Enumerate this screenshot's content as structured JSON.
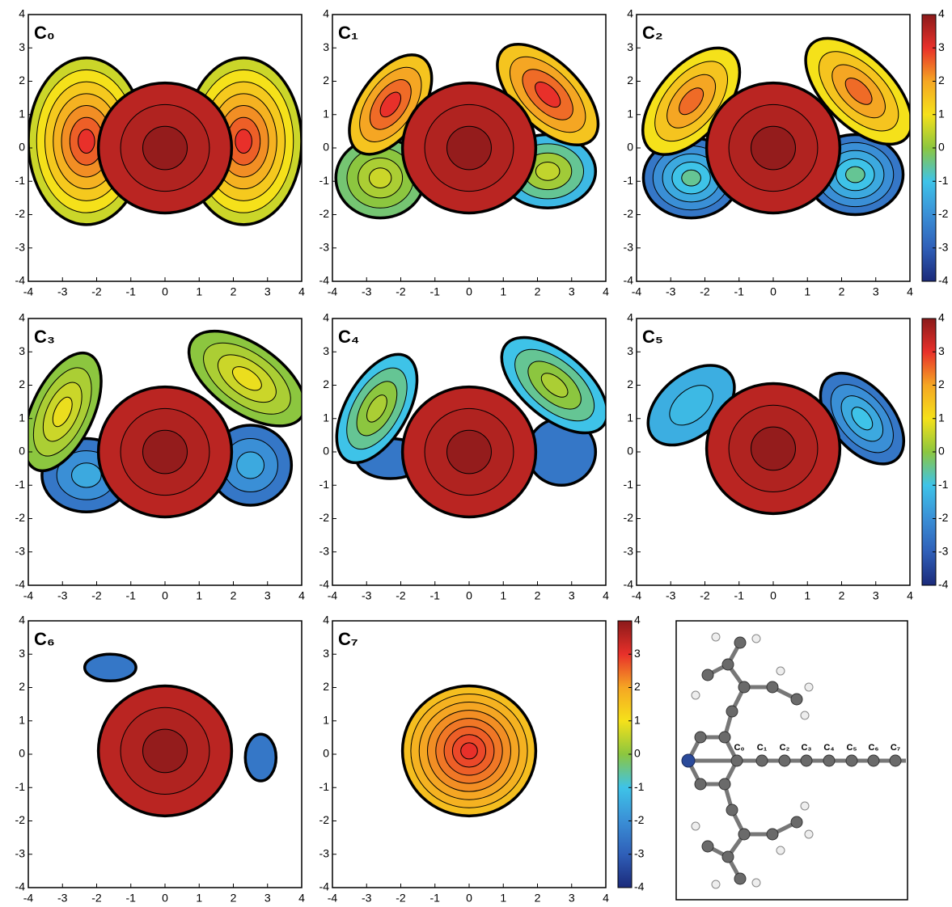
{
  "chart_data": [
    {
      "type": "contour",
      "title": "C₀",
      "xlim": [
        -4,
        4
      ],
      "ylim": [
        -4,
        4
      ],
      "xticks": [
        -4,
        -3,
        -2,
        -1,
        0,
        1,
        2,
        3,
        4
      ],
      "yticks": [
        -4,
        -3,
        -2,
        -1,
        0,
        1,
        2,
        3,
        4
      ],
      "clim": [
        -4,
        4
      ],
      "colormap": [
        "#1b2a7a",
        "#2f5fb8",
        "#3a8fd6",
        "#3ec3e8",
        "#8cc63f",
        "#f5e11a",
        "#f5a623",
        "#e8302a",
        "#8b1a1a"
      ],
      "regions": [
        {
          "cx": -2.3,
          "cy": 0.2,
          "rx": 1.7,
          "ry": 2.5,
          "angle": 0,
          "levels": [
            0.6,
            1.0,
            1.4,
            1.8,
            2.2,
            2.6,
            3.0
          ]
        },
        {
          "cx": 2.3,
          "cy": 0.2,
          "rx": 1.7,
          "ry": 2.5,
          "angle": 0,
          "levels": [
            0.6,
            1.0,
            1.4,
            1.8,
            2.2,
            2.6,
            3.0
          ]
        },
        {
          "cx": 0,
          "cy": 0,
          "rx": 1.95,
          "ry": 1.95,
          "angle": 0,
          "levels": [
            3.5,
            3.6,
            3.9
          ]
        }
      ]
    },
    {
      "type": "contour",
      "title": "C₁",
      "xlim": [
        -4,
        4
      ],
      "ylim": [
        -4,
        4
      ],
      "xticks": [
        -4,
        -3,
        -2,
        -1,
        0,
        1,
        2,
        3,
        4
      ],
      "yticks": [
        -4,
        -3,
        -2,
        -1,
        0,
        1,
        2,
        3,
        4
      ],
      "clim": [
        -4,
        4
      ],
      "colormap": [
        "#1b2a7a",
        "#2f5fb8",
        "#3a8fd6",
        "#3ec3e8",
        "#8cc63f",
        "#f5e11a",
        "#f5a623",
        "#e8302a",
        "#8b1a1a"
      ],
      "regions": [
        {
          "cx": -2.6,
          "cy": -0.9,
          "rx": 1.3,
          "ry": 1.2,
          "angle": 0,
          "levels": [
            -0.3,
            0,
            0.3,
            0.6
          ]
        },
        {
          "cx": 2.3,
          "cy": -0.7,
          "rx": 1.4,
          "ry": 1.1,
          "angle": 0,
          "levels": [
            -1.2,
            -0.5,
            0.2,
            0.5
          ]
        },
        {
          "cx": -2.3,
          "cy": 1.3,
          "rx": 0.9,
          "ry": 1.7,
          "angle": -35,
          "levels": [
            1.5,
            2,
            2.5,
            3
          ]
        },
        {
          "cx": 2.3,
          "cy": 1.6,
          "rx": 0.95,
          "ry": 1.9,
          "angle": 45,
          "levels": [
            1.5,
            2,
            2.5,
            3
          ]
        },
        {
          "cx": 0,
          "cy": 0,
          "rx": 1.95,
          "ry": 1.95,
          "angle": 0,
          "levels": [
            3.5,
            3.6,
            3.9
          ]
        }
      ]
    },
    {
      "type": "contour",
      "title": "C₂",
      "xlim": [
        -4,
        4
      ],
      "ylim": [
        -4,
        4
      ],
      "xticks": [
        -4,
        -3,
        -2,
        -1,
        0,
        1,
        2,
        3,
        4
      ],
      "yticks": [
        -4,
        -3,
        -2,
        -1,
        0,
        1,
        2,
        3,
        4
      ],
      "clim": [
        -4,
        4
      ],
      "cticks": [
        -4,
        -3,
        -2,
        -1,
        0,
        1,
        2,
        3,
        4
      ],
      "colormap": [
        "#1b2a7a",
        "#2f5fb8",
        "#3a8fd6",
        "#3ec3e8",
        "#8cc63f",
        "#f5e11a",
        "#f5a623",
        "#e8302a",
        "#8b1a1a"
      ],
      "regions": [
        {
          "cx": -2.4,
          "cy": -0.9,
          "rx": 1.4,
          "ry": 1.2,
          "angle": 0,
          "levels": [
            -2.5,
            -2,
            -1.5,
            -1,
            -0.5
          ]
        },
        {
          "cx": 2.4,
          "cy": -0.8,
          "rx": 1.4,
          "ry": 1.2,
          "angle": 0,
          "levels": [
            -2.5,
            -2,
            -1.5,
            -1,
            -0.5
          ]
        },
        {
          "cx": -2.4,
          "cy": 1.4,
          "rx": 1.0,
          "ry": 1.9,
          "angle": -40,
          "levels": [
            1,
            1.5,
            2,
            2.5
          ]
        },
        {
          "cx": 2.5,
          "cy": 1.7,
          "rx": 1.0,
          "ry": 2.0,
          "angle": 45,
          "levels": [
            1,
            1.5,
            2,
            2.5
          ]
        },
        {
          "cx": 0,
          "cy": 0,
          "rx": 1.95,
          "ry": 1.95,
          "angle": 0,
          "levels": [
            3.5,
            3.6,
            3.9
          ]
        }
      ]
    },
    {
      "type": "contour",
      "title": "C₃",
      "xlim": [
        -4,
        4
      ],
      "ylim": [
        -4,
        4
      ],
      "xticks": [
        -4,
        -3,
        -2,
        -1,
        0,
        1,
        2,
        3,
        4
      ],
      "yticks": [
        -4,
        -3,
        -2,
        -1,
        0,
        1,
        2,
        3,
        4
      ],
      "clim": [
        -4,
        4
      ],
      "colormap": [
        "#1b2a7a",
        "#2f5fb8",
        "#3a8fd6",
        "#3ec3e8",
        "#8cc63f",
        "#f5e11a",
        "#f5a623",
        "#e8302a",
        "#8b1a1a"
      ],
      "regions": [
        {
          "cx": -2.3,
          "cy": -0.7,
          "rx": 1.3,
          "ry": 1.1,
          "angle": 0,
          "levels": [
            -2.5,
            -2,
            -1.5
          ]
        },
        {
          "cx": 2.5,
          "cy": -0.4,
          "rx": 1.2,
          "ry": 1.2,
          "angle": 0,
          "levels": [
            -2.5,
            -2,
            -1.5
          ]
        },
        {
          "cx": -3.0,
          "cy": 1.2,
          "rx": 0.9,
          "ry": 1.9,
          "angle": -25,
          "levels": [
            0,
            0.3,
            0.6,
            0.9
          ]
        },
        {
          "cx": 2.4,
          "cy": 2.2,
          "rx": 1.0,
          "ry": 2.0,
          "angle": 55,
          "levels": [
            0,
            0.3,
            0.6,
            0.9
          ]
        },
        {
          "cx": 0,
          "cy": 0,
          "rx": 1.95,
          "ry": 1.95,
          "angle": 0,
          "levels": [
            3.5,
            3.6,
            3.9
          ]
        }
      ]
    },
    {
      "type": "contour",
      "title": "C₄",
      "xlim": [
        -4,
        4
      ],
      "ylim": [
        -4,
        4
      ],
      "xticks": [
        -4,
        -3,
        -2,
        -1,
        0,
        1,
        2,
        3,
        4
      ],
      "yticks": [
        -4,
        -3,
        -2,
        -1,
        0,
        1,
        2,
        3,
        4
      ],
      "clim": [
        -4,
        4
      ],
      "colormap": [
        "#1b2a7a",
        "#2f5fb8",
        "#3a8fd6",
        "#3ec3e8",
        "#8cc63f",
        "#f5e11a",
        "#f5a623",
        "#e8302a",
        "#8b1a1a"
      ],
      "regions": [
        {
          "cx": -2.3,
          "cy": -0.2,
          "rx": 1.0,
          "ry": 0.6,
          "angle": 0,
          "levels": [
            -2.5
          ]
        },
        {
          "cx": 2.7,
          "cy": 0,
          "rx": 1.0,
          "ry": 1.0,
          "angle": 0,
          "levels": [
            -2.5
          ]
        },
        {
          "cx": -2.7,
          "cy": 1.3,
          "rx": 0.9,
          "ry": 1.8,
          "angle": -30,
          "levels": [
            -1,
            -0.5,
            0,
            0.3
          ]
        },
        {
          "cx": 2.5,
          "cy": 2.0,
          "rx": 0.95,
          "ry": 1.9,
          "angle": 50,
          "levels": [
            -1,
            -0.5,
            0,
            0.3
          ]
        },
        {
          "cx": 0,
          "cy": 0,
          "rx": 1.95,
          "ry": 1.95,
          "angle": 0,
          "levels": [
            3.5,
            3.6,
            3.9
          ]
        }
      ]
    },
    {
      "type": "contour",
      "title": "C₅",
      "xlim": [
        -4,
        4
      ],
      "ylim": [
        -4,
        4
      ],
      "xticks": [
        -4,
        -3,
        -2,
        -1,
        0,
        1,
        2,
        3,
        4
      ],
      "yticks": [
        -4,
        -3,
        -2,
        -1,
        0,
        1,
        2,
        3,
        4
      ],
      "clim": [
        -4,
        4
      ],
      "cticks": [
        -4,
        -3,
        -2,
        -1,
        0,
        1,
        2,
        3,
        4
      ],
      "colormap": [
        "#1b2a7a",
        "#2f5fb8",
        "#3a8fd6",
        "#3ec3e8",
        "#8cc63f",
        "#f5e11a",
        "#f5a623",
        "#e8302a",
        "#8b1a1a"
      ],
      "regions": [
        {
          "cx": -2.4,
          "cy": 1.4,
          "rx": 0.9,
          "ry": 1.5,
          "angle": -50,
          "levels": [
            -1.4,
            -1.2
          ]
        },
        {
          "cx": 2.6,
          "cy": 1.0,
          "rx": 0.9,
          "ry": 1.6,
          "angle": 40,
          "levels": [
            -2.5,
            -2,
            -1.5,
            -1
          ]
        },
        {
          "cx": 0,
          "cy": 0.1,
          "rx": 1.95,
          "ry": 1.95,
          "angle": 0,
          "levels": [
            3.5,
            3.6,
            3.9
          ]
        }
      ]
    },
    {
      "type": "contour",
      "title": "C₆",
      "xlim": [
        -4,
        4
      ],
      "ylim": [
        -4,
        4
      ],
      "xticks": [
        -4,
        -3,
        -2,
        -1,
        0,
        1,
        2,
        3,
        4
      ],
      "yticks": [
        -4,
        -3,
        -2,
        -1,
        0,
        1,
        2,
        3,
        4
      ],
      "clim": [
        -4,
        4
      ],
      "colormap": [
        "#1b2a7a",
        "#2f5fb8",
        "#3a8fd6",
        "#3ec3e8",
        "#8cc63f",
        "#f5e11a",
        "#f5a623",
        "#e8302a",
        "#8b1a1a"
      ],
      "regions": [
        {
          "cx": -1.6,
          "cy": 2.6,
          "rx": 0.75,
          "ry": 0.4,
          "angle": 0,
          "levels": [
            -2.5
          ]
        },
        {
          "cx": 2.8,
          "cy": -0.1,
          "rx": 0.45,
          "ry": 0.7,
          "angle": 0,
          "levels": [
            -2.5
          ]
        },
        {
          "cx": 0,
          "cy": 0.1,
          "rx": 1.95,
          "ry": 1.95,
          "angle": 0,
          "levels": [
            3.5,
            3.6,
            3.9
          ]
        }
      ]
    },
    {
      "type": "contour",
      "title": "C₇",
      "xlim": [
        -4,
        4
      ],
      "ylim": [
        -4,
        4
      ],
      "xticks": [
        -4,
        -3,
        -2,
        -1,
        0,
        1,
        2,
        3,
        4
      ],
      "yticks": [
        -4,
        -3,
        -2,
        -1,
        0,
        1,
        2,
        3,
        4
      ],
      "clim": [
        -4,
        4
      ],
      "cticks": [
        -4,
        -3,
        -2,
        -1,
        0,
        1,
        2,
        3,
        4
      ],
      "colormap": [
        "#1b2a7a",
        "#2f5fb8",
        "#3a8fd6",
        "#3ec3e8",
        "#8cc63f",
        "#f5e11a",
        "#f5a623",
        "#e8302a",
        "#8b1a1a"
      ],
      "regions": [
        {
          "cx": 0,
          "cy": 0.1,
          "rx": 1.95,
          "ry": 1.95,
          "angle": 0,
          "levels": [
            1.6,
            1.8,
            2.0,
            2.2,
            2.4,
            2.6,
            2.8,
            3.0
          ]
        }
      ]
    }
  ],
  "molecule": {
    "atom_labels": [
      "C₀",
      "C₁",
      "C₂",
      "C₃",
      "C₄",
      "C₅",
      "C₆",
      "C₇"
    ]
  }
}
